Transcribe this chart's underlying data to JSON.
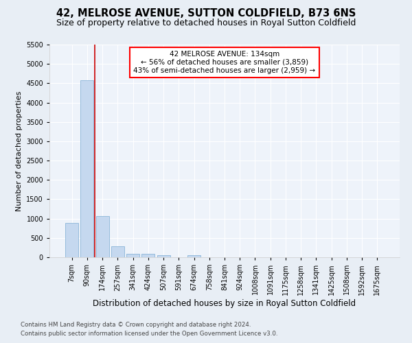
{
  "title": "42, MELROSE AVENUE, SUTTON COLDFIELD, B73 6NS",
  "subtitle": "Size of property relative to detached houses in Royal Sutton Coldfield",
  "xlabel": "Distribution of detached houses by size in Royal Sutton Coldfield",
  "ylabel": "Number of detached properties",
  "footnote1": "Contains HM Land Registry data © Crown copyright and database right 2024.",
  "footnote2": "Contains public sector information licensed under the Open Government Licence v3.0.",
  "categories": [
    "7sqm",
    "90sqm",
    "174sqm",
    "257sqm",
    "341sqm",
    "424sqm",
    "507sqm",
    "591sqm",
    "674sqm",
    "758sqm",
    "841sqm",
    "924sqm",
    "1008sqm",
    "1091sqm",
    "1175sqm",
    "1258sqm",
    "1341sqm",
    "1425sqm",
    "1508sqm",
    "1592sqm",
    "1675sqm"
  ],
  "values": [
    880,
    4580,
    1060,
    290,
    90,
    80,
    50,
    0,
    50,
    0,
    0,
    0,
    0,
    0,
    0,
    0,
    0,
    0,
    0,
    0,
    0
  ],
  "bar_color": "#c5d8ef",
  "bar_edge_color": "#8ab4d8",
  "vline_color": "#cc0000",
  "annotation_box_text": "42 MELROSE AVENUE: 134sqm\n← 56% of detached houses are smaller (3,859)\n43% of semi-detached houses are larger (2,959) →",
  "ylim": [
    0,
    5500
  ],
  "yticks": [
    0,
    500,
    1000,
    1500,
    2000,
    2500,
    3000,
    3500,
    4000,
    4500,
    5000,
    5500
  ],
  "bg_color": "#e8eef5",
  "plot_bg_color": "#eef3fa",
  "grid_color": "#ffffff",
  "title_fontsize": 10.5,
  "subtitle_fontsize": 9,
  "xlabel_fontsize": 8.5,
  "ylabel_fontsize": 8,
  "tick_fontsize": 7,
  "annot_fontsize": 7.5
}
